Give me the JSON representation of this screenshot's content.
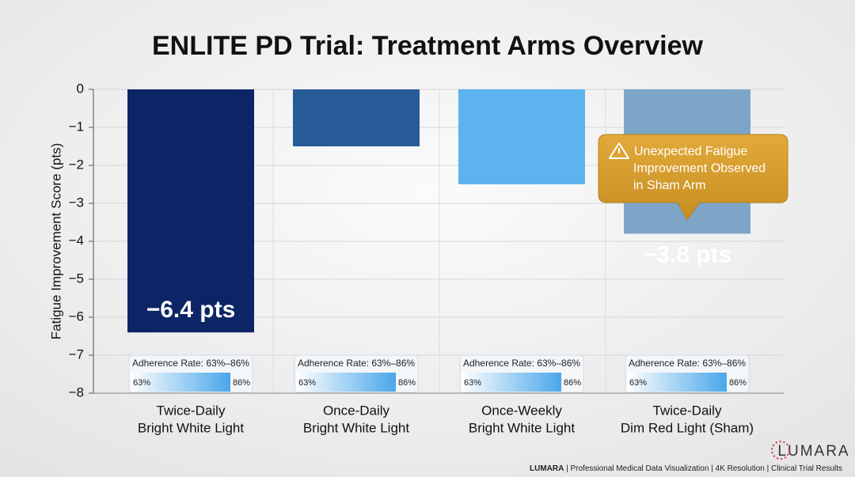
{
  "chart_data": {
    "type": "bar",
    "title": "ENLITE PD Trial: Treatment Arms Overview",
    "y_label": "Fatigue Improvement Score (pts)",
    "categories": [
      [
        "Twice-Daily",
        "Bright White Light"
      ],
      [
        "Once-Daily",
        "Bright White Light"
      ],
      [
        "Once-Weekly",
        "Bright White Light"
      ],
      [
        "Twice-Daily",
        "Dim Red Light (Sham)"
      ]
    ],
    "values": [
      -6.4,
      -1.5,
      -2.5,
      -3.8
    ],
    "value_labels": [
      "−6.4 pts",
      null,
      null,
      "−3.8 pts"
    ],
    "colors": [
      "#0c2566",
      "#265b98",
      "#5cb3ee",
      "#7ca5c8"
    ],
    "ylim": [
      -8,
      0
    ],
    "yticks": [
      {
        "value": -8,
        "label": "−8"
      },
      {
        "value": -7,
        "label": "−7"
      },
      {
        "value": -6,
        "label": "−6"
      },
      {
        "value": -5,
        "label": "−5"
      },
      {
        "value": -4,
        "label": "−4"
      },
      {
        "value": -3,
        "label": "−3"
      },
      {
        "value": -2,
        "label": "−2"
      },
      {
        "value": -1,
        "label": "−1"
      },
      0
    ],
    "grid": true,
    "adherence": [
      {
        "label": "Adherence Rate: 63%–86%",
        "low": "63%",
        "high": "86%"
      },
      {
        "label": "Adherence Rate: 63%–86%",
        "low": "63%",
        "high": "86%"
      },
      {
        "label": "Adherence Rate: 63%–86%",
        "low": "63%",
        "high": "86%"
      },
      {
        "label": "Adherence Rate: 63%–86%",
        "low": "63%",
        "high": "86%"
      }
    ],
    "callout": [
      "Unexpected Fatigue",
      "Improvement Observed",
      "in Sham Arm"
    ],
    "logo": "LUMARA",
    "footer": {
      "brand": "LUMARA",
      "text": " | Professional Medical Data Visualization | 4K Resolution | Clinical Trial Results"
    }
  }
}
